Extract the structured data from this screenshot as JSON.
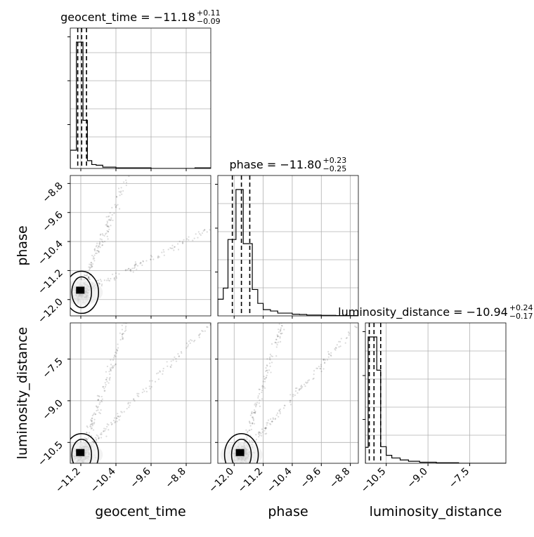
{
  "chart_data": {
    "type": "corner",
    "parameters": [
      "geocent_time",
      "phase",
      "luminosity_distance"
    ],
    "axes": {
      "geocent_time": {
        "label": "geocent_time",
        "range": [
          -11.44,
          -8.24
        ],
        "ticks": [
          -11.2,
          -10.4,
          -9.6,
          -8.8
        ],
        "tick_labels": [
          "−11.2",
          "−10.4",
          "−9.6",
          "−8.8"
        ]
      },
      "phase": {
        "label": "phase",
        "range": [
          -12.45,
          -8.58
        ],
        "ticks": [
          -12.0,
          -11.2,
          -10.4,
          -9.6,
          -8.8
        ],
        "tick_labels": [
          "−12.0",
          "−11.2",
          "−10.4",
          "−9.6",
          "−8.8"
        ]
      },
      "luminosity_distance": {
        "label": "luminosity_distance",
        "range": [
          -11.25,
          -6.2
        ],
        "ticks": [
          -10.5,
          -9.0,
          -7.5
        ],
        "tick_labels": [
          "−10.5",
          "−9.0",
          "−7.5"
        ]
      }
    },
    "titles": [
      {
        "param": "geocent_time",
        "text": "geocent_time = −11.18",
        "plus": "+0.11",
        "minus": "−0.09"
      },
      {
        "param": "phase",
        "text": "phase = −11.80",
        "plus": "+0.23",
        "minus": "−0.25"
      },
      {
        "param": "luminosity_distance",
        "text": "luminosity_distance = −10.94",
        "plus": "+0.24",
        "minus": "−0.17"
      }
    ],
    "quantiles": {
      "geocent_time": [
        -11.27,
        -11.18,
        -11.07
      ],
      "phase": [
        -12.05,
        -11.8,
        -11.57
      ],
      "luminosity_distance": [
        -11.11,
        -10.94,
        -10.7
      ]
    },
    "histograms": {
      "geocent_time": {
        "edges": [
          -11.44,
          -11.3,
          -11.25,
          -11.2,
          -11.15,
          -11.1,
          -11.05,
          -10.95,
          -10.85,
          -10.7,
          -10.4,
          -9.6,
          -8.8,
          -8.6,
          -8.24
        ],
        "counts": [
          0.14,
          0.97,
          0.97,
          0.97,
          0.37,
          0.37,
          0.06,
          0.03,
          0.025,
          0.01,
          0.005,
          0.0,
          0.0,
          0.005
        ]
      },
      "phase": {
        "edges": [
          -12.45,
          -12.3,
          -12.17,
          -12.05,
          -11.95,
          -11.85,
          -11.75,
          -11.62,
          -11.5,
          -11.35,
          -11.2,
          -11.0,
          -10.8,
          -10.6,
          -10.4,
          -10.2,
          -10.0,
          -9.6,
          -9.2,
          -8.58
        ],
        "counts": [
          0.12,
          0.2,
          0.55,
          0.55,
          0.91,
          0.91,
          0.52,
          0.52,
          0.19,
          0.09,
          0.045,
          0.035,
          0.02,
          0.02,
          0.012,
          0.01,
          0.006,
          0.004,
          0.002
        ]
      },
      "luminosity_distance": {
        "edges": [
          -11.25,
          -11.15,
          -10.98,
          -10.84,
          -10.7,
          -10.5,
          -10.3,
          -10.0,
          -9.7,
          -9.3,
          -8.7,
          -7.9,
          -6.2
        ],
        "counts": [
          0.12,
          0.95,
          0.95,
          0.7,
          0.125,
          0.06,
          0.04,
          0.025,
          0.015,
          0.008,
          0.004,
          0.0
        ]
      }
    },
    "grid": true
  }
}
